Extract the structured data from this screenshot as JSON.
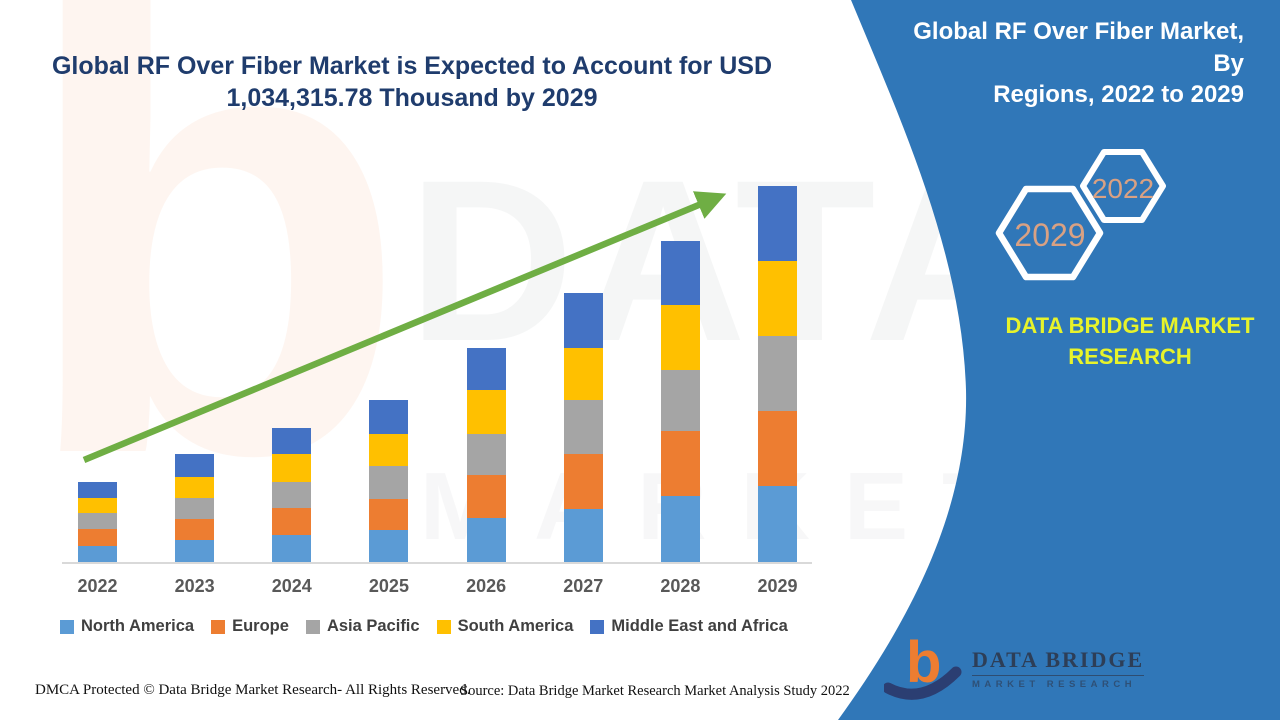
{
  "header": {
    "title_line1": "Global RF Over Fiber Market is Expected to Account for USD",
    "title_line2": "1,034,315.78 Thousand by 2029"
  },
  "side_panel": {
    "heading_line1": "Global RF Over Fiber Market, By",
    "heading_line2": "Regions, 2022 to 2029",
    "hexagons": [
      {
        "label": "2029"
      },
      {
        "label": "2022"
      }
    ],
    "brand_line1": "DATA BRIDGE MARKET",
    "brand_line2": "RESEARCH",
    "logo": {
      "mark_letter": "b",
      "text_primary": "DATA BRIDGE",
      "text_secondary": "MARKET RESEARCH"
    },
    "panel_color": "#3077b8"
  },
  "watermarks": {
    "logo_letter": "b",
    "brand": "DATA BRIDGE",
    "sub": "MARKET RESEARCH"
  },
  "chart_data": {
    "type": "bar",
    "stacked": true,
    "title": "Global RF Over Fiber Market is Expected to Account for USD 1,034,315.78 Thousand by 2029",
    "unit": "USD Thousand",
    "labeled_total_2029": 1034315.78,
    "values_estimated_from_pixels": true,
    "categories": [
      "2022",
      "2023",
      "2024",
      "2025",
      "2026",
      "2027",
      "2028",
      "2029"
    ],
    "series": [
      {
        "name": "North America",
        "color": "#5b9bd5",
        "values": [
          44000,
          60500,
          74300,
          88000,
          121000,
          145800,
          181600,
          209100
        ]
      },
      {
        "name": "Europe",
        "color": "#ed7d31",
        "values": [
          46800,
          57800,
          74300,
          85300,
          118300,
          151300,
          178800,
          206300
        ]
      },
      {
        "name": "Asia Pacific",
        "color": "#a5a5a5",
        "values": [
          44000,
          57800,
          71500,
          90800,
          112800,
          148500,
          167800,
          206300
        ]
      },
      {
        "name": "South America",
        "color": "#ffc000",
        "values": [
          41300,
          57800,
          77000,
          88000,
          121000,
          143000,
          178800,
          206300
        ]
      },
      {
        "name": "Middle East and Africa",
        "color": "#4472c4",
        "values": [
          44000,
          63300,
          71500,
          93500,
          115500,
          151300,
          176100,
          206315.78
        ]
      }
    ],
    "totals": [
      220100,
      297200,
      368600,
      445600,
      588600,
      739900,
      883100,
      1034315.78
    ],
    "legend_position": "bottom",
    "grid": false,
    "trend_arrow_color": "#6fae44",
    "axis": {
      "baseline_color": "#d9d9d9",
      "label_color": "#595959"
    }
  },
  "footer": {
    "left": "DMCA Protected © Data Bridge Market Research- All Rights Reserved.",
    "right": "Source: Data Bridge Market Research Market Analysis Study 2022"
  }
}
